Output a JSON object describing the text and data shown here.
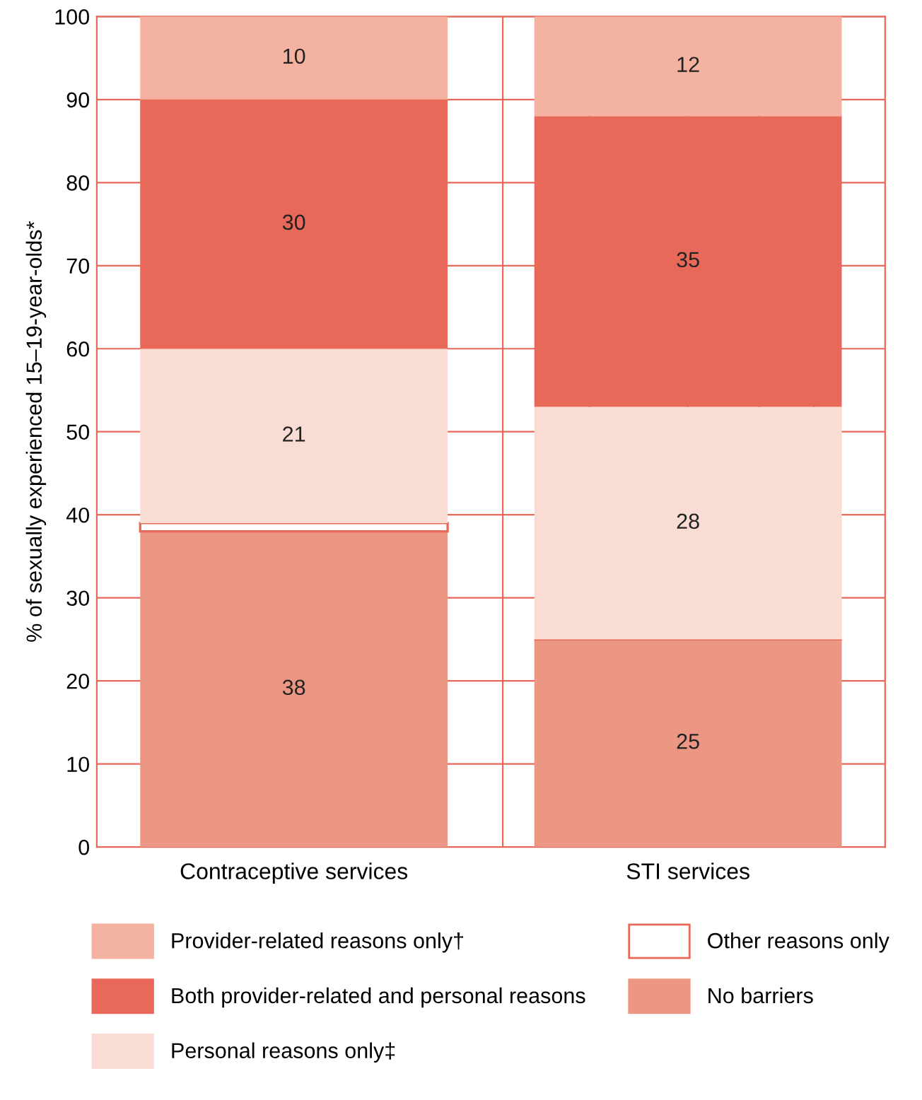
{
  "chart_data": {
    "type": "bar",
    "stacked": true,
    "ylabel": "% of sexually experienced 15–19-year-olds*",
    "categories": [
      "Contraceptive services",
      "STI services"
    ],
    "series": [
      {
        "name": "No barriers",
        "color": "#ec9783",
        "values": [
          38,
          25
        ],
        "value_labels": [
          "38",
          "25"
        ]
      },
      {
        "name": "Other reasons only",
        "color": "#ffffff",
        "values": [
          1,
          0
        ],
        "value_labels": [
          null,
          null
        ]
      },
      {
        "name": "Personal reasons only‡",
        "color": "#f9dcd4",
        "values": [
          21,
          28
        ],
        "value_labels": [
          "21",
          "28"
        ]
      },
      {
        "name": "Both provider-related and personal reasons",
        "color": "#e8695a",
        "values": [
          30,
          35
        ],
        "value_labels": [
          "30",
          "35"
        ]
      },
      {
        "name": "Provider-related reasons only†",
        "color": "#f4b2a0",
        "values": [
          10,
          12
        ],
        "value_labels": [
          "10",
          "12"
        ]
      }
    ],
    "ylim": [
      0,
      100
    ],
    "yticks": [
      0,
      10,
      20,
      30,
      40,
      50,
      60,
      70,
      80,
      90,
      100
    ],
    "grid": true,
    "legend": "bottom"
  }
}
